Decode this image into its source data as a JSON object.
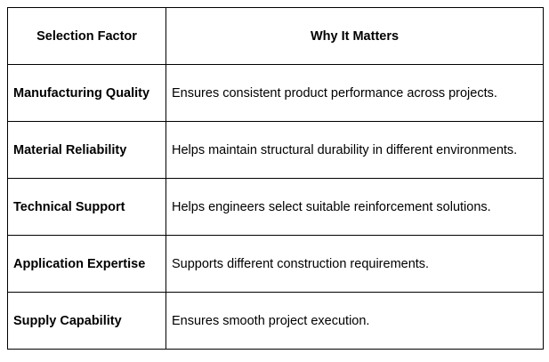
{
  "table": {
    "header": [
      "Selection Factor",
      "Why It Matters"
    ],
    "rows": [
      [
        "Manufacturing Quality",
        "Ensures consistent product performance across projects."
      ],
      [
        "Material Reliability",
        "Helps maintain structural durability in different environments."
      ],
      [
        "Technical Support",
        "Helps engineers select suitable reinforcement solutions."
      ],
      [
        "Application Expertise",
        "Supports different construction requirements."
      ],
      [
        "Supply Capability",
        "Ensures smooth project execution."
      ]
    ]
  }
}
